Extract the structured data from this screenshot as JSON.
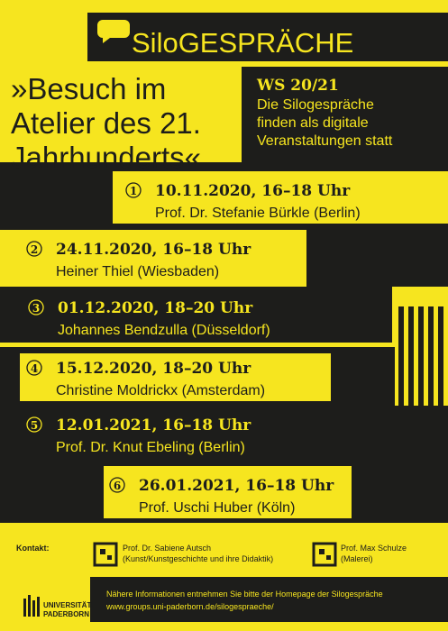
{
  "header": {
    "title": "SiloGESPRÄCHE"
  },
  "intro": {
    "title": [
      "»Besuch im",
      "Atelier des 21.",
      "Jahrhunderts«"
    ]
  },
  "info": {
    "semester": "WS 20/21",
    "lines": [
      "Die Silogespräche",
      "finden als digitale",
      "Veranstaltungen statt"
    ]
  },
  "events": [
    {
      "number": "1",
      "date": "10.11.2020, 16–18 Uhr",
      "speaker": "Prof. Dr. Stefanie Bürkle (Berlin)"
    },
    {
      "number": "2",
      "date": "24.11.2020, 16–18 Uhr",
      "speaker": "Heiner Thiel (Wiesbaden)"
    },
    {
      "number": "3",
      "date": "01.12.2020, 18–20 Uhr",
      "speaker": "Johannes Bendzulla (Düsseldorf)"
    },
    {
      "number": "4",
      "date": "15.12.2020, 18–20 Uhr",
      "speaker": "Christine Moldrickx (Amsterdam)"
    },
    {
      "number": "5",
      "date": "12.01.2021, 16–18 Uhr",
      "speaker": "Prof. Dr. Knut Ebeling (Berlin)"
    },
    {
      "number": "6",
      "date": "26.01.2021, 16–18 Uhr",
      "speaker": "Prof. Uschi Huber (Köln)"
    }
  ],
  "contacts": {
    "label": "Kontakt:",
    "people": [
      {
        "name": "Prof. Dr. Sabiene Autsch",
        "detail": "(Kunst/Kunstgeschichte und ihre Didaktik)"
      },
      {
        "name": "Prof. Max Schulze",
        "detail": "(Malerei)"
      }
    ]
  },
  "footer": {
    "lines": [
      "Nähere Informationen entnehmen Sie bitte der Homepage der Silogespräche",
      "www.groups.uni-paderborn.de/silogespraeche/"
    ]
  },
  "logo": {
    "lines": [
      "UNIVERSITÄT",
      "PADERBORN"
    ]
  }
}
